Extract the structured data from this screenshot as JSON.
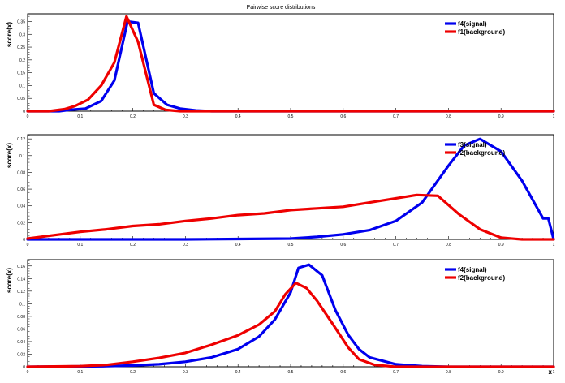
{
  "title": "Pairwise score distributions",
  "colors": {
    "signal": "#0000ee",
    "background": "#ee0000"
  },
  "chart_data": [
    {
      "type": "line",
      "ylabel": "score(x)",
      "xlabel": "",
      "xlim": [
        0,
        1
      ],
      "ylim": [
        0,
        0.38
      ],
      "xticks": [
        "0",
        "0.1",
        "0.2",
        "0.3",
        "0.4",
        "0.5",
        "0.6",
        "0.7",
        "0.8",
        "0.9",
        "1"
      ],
      "yticks": [
        0,
        0.05,
        0.1,
        0.15,
        0.2,
        0.25,
        0.3,
        0.35
      ],
      "ytick_labels": [
        "0",
        "0.05",
        "0.1",
        "0.15",
        "0.2",
        "0.25",
        "0.3",
        "0.35"
      ],
      "legend_position": "top-right",
      "series": [
        {
          "name": "f4(signal)",
          "color": "#0000ee",
          "x": [
            0,
            0.06,
            0.08,
            0.11,
            0.14,
            0.165,
            0.19,
            0.21,
            0.24,
            0.265,
            0.29,
            0.32,
            0.35,
            1
          ],
          "y": [
            0,
            0,
            0.005,
            0.01,
            0.04,
            0.12,
            0.35,
            0.345,
            0.07,
            0.025,
            0.01,
            0.003,
            0,
            0
          ]
        },
        {
          "name": "f1(background)",
          "color": "#ee0000",
          "x": [
            0,
            0.04,
            0.07,
            0.09,
            0.115,
            0.14,
            0.165,
            0.188,
            0.21,
            0.24,
            0.262,
            0.29,
            1
          ],
          "y": [
            0,
            0,
            0.008,
            0.02,
            0.045,
            0.1,
            0.19,
            0.37,
            0.27,
            0.025,
            0.005,
            0,
            0
          ]
        }
      ]
    },
    {
      "type": "line",
      "ylabel": "score(x)",
      "xlabel": "",
      "xlim": [
        0,
        1
      ],
      "ylim": [
        0,
        0.125
      ],
      "xticks": [
        "0",
        "0.1",
        "0.2",
        "0.3",
        "0.4",
        "0.5",
        "0.6",
        "0.7",
        "0.8",
        "0.9",
        "1"
      ],
      "yticks": [
        0,
        0.02,
        0.04,
        0.06,
        0.08,
        0.1,
        0.12
      ],
      "ytick_labels": [
        "0",
        "0.02",
        "0.04",
        "0.06",
        "0.08",
        "0.1",
        "0.12"
      ],
      "legend_position": "top-right",
      "series": [
        {
          "name": "f3(signal)",
          "color": "#0000ee",
          "x": [
            0,
            0.3,
            0.4,
            0.5,
            0.55,
            0.6,
            0.65,
            0.7,
            0.75,
            0.8,
            0.83,
            0.86,
            0.9,
            0.94,
            0.98,
            0.99,
            1
          ],
          "y": [
            0,
            0,
            0.0005,
            0.001,
            0.003,
            0.006,
            0.011,
            0.022,
            0.044,
            0.088,
            0.112,
            0.12,
            0.105,
            0.07,
            0.025,
            0.025,
            0
          ]
        },
        {
          "name": "f2(background)",
          "color": "#ee0000",
          "x": [
            0,
            0.05,
            0.1,
            0.15,
            0.2,
            0.25,
            0.3,
            0.35,
            0.4,
            0.45,
            0.5,
            0.55,
            0.6,
            0.65,
            0.7,
            0.74,
            0.78,
            0.82,
            0.86,
            0.9,
            0.94,
            1
          ],
          "y": [
            0.001,
            0.005,
            0.009,
            0.012,
            0.016,
            0.018,
            0.022,
            0.025,
            0.029,
            0.031,
            0.035,
            0.037,
            0.039,
            0.044,
            0.049,
            0.053,
            0.052,
            0.03,
            0.012,
            0.002,
            0,
            0
          ]
        }
      ]
    },
    {
      "type": "line",
      "ylabel": "score(x)",
      "xlabel": "x",
      "xlim": [
        0,
        1
      ],
      "ylim": [
        0,
        0.17
      ],
      "xticks": [
        "0",
        "0.1",
        "0.2",
        "0.3",
        "0.4",
        "0.5",
        "0.6",
        "0.7",
        "0.8",
        "0.9",
        "1"
      ],
      "yticks": [
        0,
        0.02,
        0.04,
        0.06,
        0.08,
        0.1,
        0.12,
        0.14,
        0.16
      ],
      "ytick_labels": [
        "0",
        "0.02",
        "0.04",
        "0.06",
        "0.08",
        "0.1",
        "0.12",
        "0.14",
        "0.16"
      ],
      "legend_position": "top-right",
      "series": [
        {
          "name": "f4(signal)",
          "color": "#0000ee",
          "x": [
            0,
            0.15,
            0.2,
            0.25,
            0.3,
            0.35,
            0.4,
            0.44,
            0.47,
            0.5,
            0.515,
            0.535,
            0.56,
            0.585,
            0.61,
            0.63,
            0.65,
            0.7,
            0.75,
            0.8,
            1
          ],
          "y": [
            0,
            0.001,
            0.002,
            0.004,
            0.008,
            0.015,
            0.028,
            0.048,
            0.075,
            0.118,
            0.157,
            0.162,
            0.145,
            0.09,
            0.05,
            0.028,
            0.015,
            0.004,
            0.001,
            0,
            0
          ]
        },
        {
          "name": "f2(background)",
          "color": "#ee0000",
          "x": [
            0,
            0.1,
            0.15,
            0.2,
            0.25,
            0.3,
            0.35,
            0.4,
            0.44,
            0.47,
            0.49,
            0.51,
            0.53,
            0.55,
            0.58,
            0.61,
            0.63,
            0.66,
            0.7,
            1
          ],
          "y": [
            0,
            0.001,
            0.003,
            0.008,
            0.014,
            0.022,
            0.035,
            0.05,
            0.067,
            0.088,
            0.115,
            0.133,
            0.125,
            0.105,
            0.068,
            0.03,
            0.012,
            0.003,
            0,
            0
          ]
        }
      ]
    }
  ]
}
